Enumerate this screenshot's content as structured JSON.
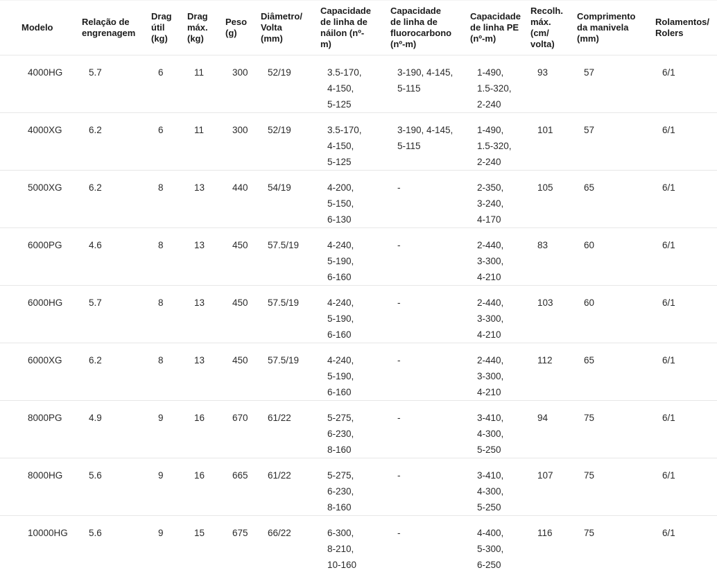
{
  "colors": {
    "background": "#ffffff",
    "text": "#212121",
    "row_divider": "#e7e7e7"
  },
  "chart_data": {
    "type": "table",
    "columns": [
      {
        "key": "modelo",
        "label": "Modelo",
        "display": "Modelo"
      },
      {
        "key": "relacao_de_engrenagem",
        "label": "Relação de engrenagem",
        "display": "Relação de\nengrenagem"
      },
      {
        "key": "drag_util_kg",
        "label": "Drag útil (kg)",
        "display": "Drag\nútil\n(kg)"
      },
      {
        "key": "drag_max_kg",
        "label": "Drag máx. (kg)",
        "display": "Drag\nmáx.\n(kg)"
      },
      {
        "key": "peso_g",
        "label": "Peso (g)",
        "display": "Peso\n(g)"
      },
      {
        "key": "diametro_volta_mm",
        "label": "Diâmetro/Volta (mm)",
        "display": "Diâmetro/\nVolta\n(mm)"
      },
      {
        "key": "capacidade_linha_nailon",
        "label": "Capacidade de linha de náilon (nº-m)",
        "display": "Capacidade\nde linha de\nnáilon (nº-\nm)"
      },
      {
        "key": "capacidade_linha_fluorocarbono",
        "label": "Capacidade de linha de fluorocarbono (nº-m)",
        "display": "Capacidade\nde linha de\nfluorocarbono\n(nº-m)"
      },
      {
        "key": "capacidade_linha_pe",
        "label": "Capacidade de linha PE (nº-m)",
        "display": "Capacidade\nde linha PE\n(nº-m)"
      },
      {
        "key": "recolh_max_cm_volta",
        "label": "Recolh. máx. (cm/volta)",
        "display": "Recolh.\nmáx.\n(cm/\nvolta)"
      },
      {
        "key": "comprimento_manivela_mm",
        "label": "Comprimento da manivela (mm)",
        "display": "Comprimento\nda manivela\n(mm)"
      },
      {
        "key": "rolamentos_rolers",
        "label": "Rolamentos/Rolers",
        "display": "Rolamentos/\nRolers"
      }
    ],
    "rows": [
      [
        "4000HG",
        "5.7",
        "6",
        "11",
        "300",
        "52/19",
        "3.5-170,\n4-150,\n5-125",
        "3-190, 4-145,\n5-115",
        "1-490,\n1.5-320,\n2-240",
        "93",
        "57",
        "6/1"
      ],
      [
        "4000XG",
        "6.2",
        "6",
        "11",
        "300",
        "52/19",
        "3.5-170,\n4-150,\n5-125",
        "3-190, 4-145,\n5-115",
        "1-490,\n1.5-320,\n2-240",
        "101",
        "57",
        "6/1"
      ],
      [
        "5000XG",
        "6.2",
        "8",
        "13",
        "440",
        "54/19",
        "4-200,\n5-150,\n6-130",
        "-",
        "2-350,\n3-240,\n4-170",
        "105",
        "65",
        "6/1"
      ],
      [
        "6000PG",
        "4.6",
        "8",
        "13",
        "450",
        "57.5/19",
        "4-240,\n5-190,\n6-160",
        "-",
        "2-440,\n3-300,\n4-210",
        "83",
        "60",
        "6/1"
      ],
      [
        "6000HG",
        "5.7",
        "8",
        "13",
        "450",
        "57.5/19",
        "4-240,\n5-190,\n6-160",
        "-",
        "2-440,\n3-300,\n4-210",
        "103",
        "60",
        "6/1"
      ],
      [
        "6000XG",
        "6.2",
        "8",
        "13",
        "450",
        "57.5/19",
        "4-240,\n5-190,\n6-160",
        "-",
        "2-440,\n3-300,\n4-210",
        "112",
        "65",
        "6/1"
      ],
      [
        "8000PG",
        "4.9",
        "9",
        "16",
        "670",
        "61/22",
        "5-275,\n6-230,\n8-160",
        "-",
        "3-410,\n4-300,\n5-250",
        "94",
        "75",
        "6/1"
      ],
      [
        "8000HG",
        "5.6",
        "9",
        "16",
        "665",
        "61/22",
        "5-275,\n6-230,\n8-160",
        "-",
        "3-410,\n4-300,\n5-250",
        "107",
        "75",
        "6/1"
      ],
      [
        "10000HG",
        "5.6",
        "9",
        "15",
        "675",
        "66/22",
        "6-300,\n8-210,\n10-160",
        "-",
        "4-400,\n5-300,\n6-250",
        "116",
        "75",
        "6/1"
      ]
    ]
  }
}
